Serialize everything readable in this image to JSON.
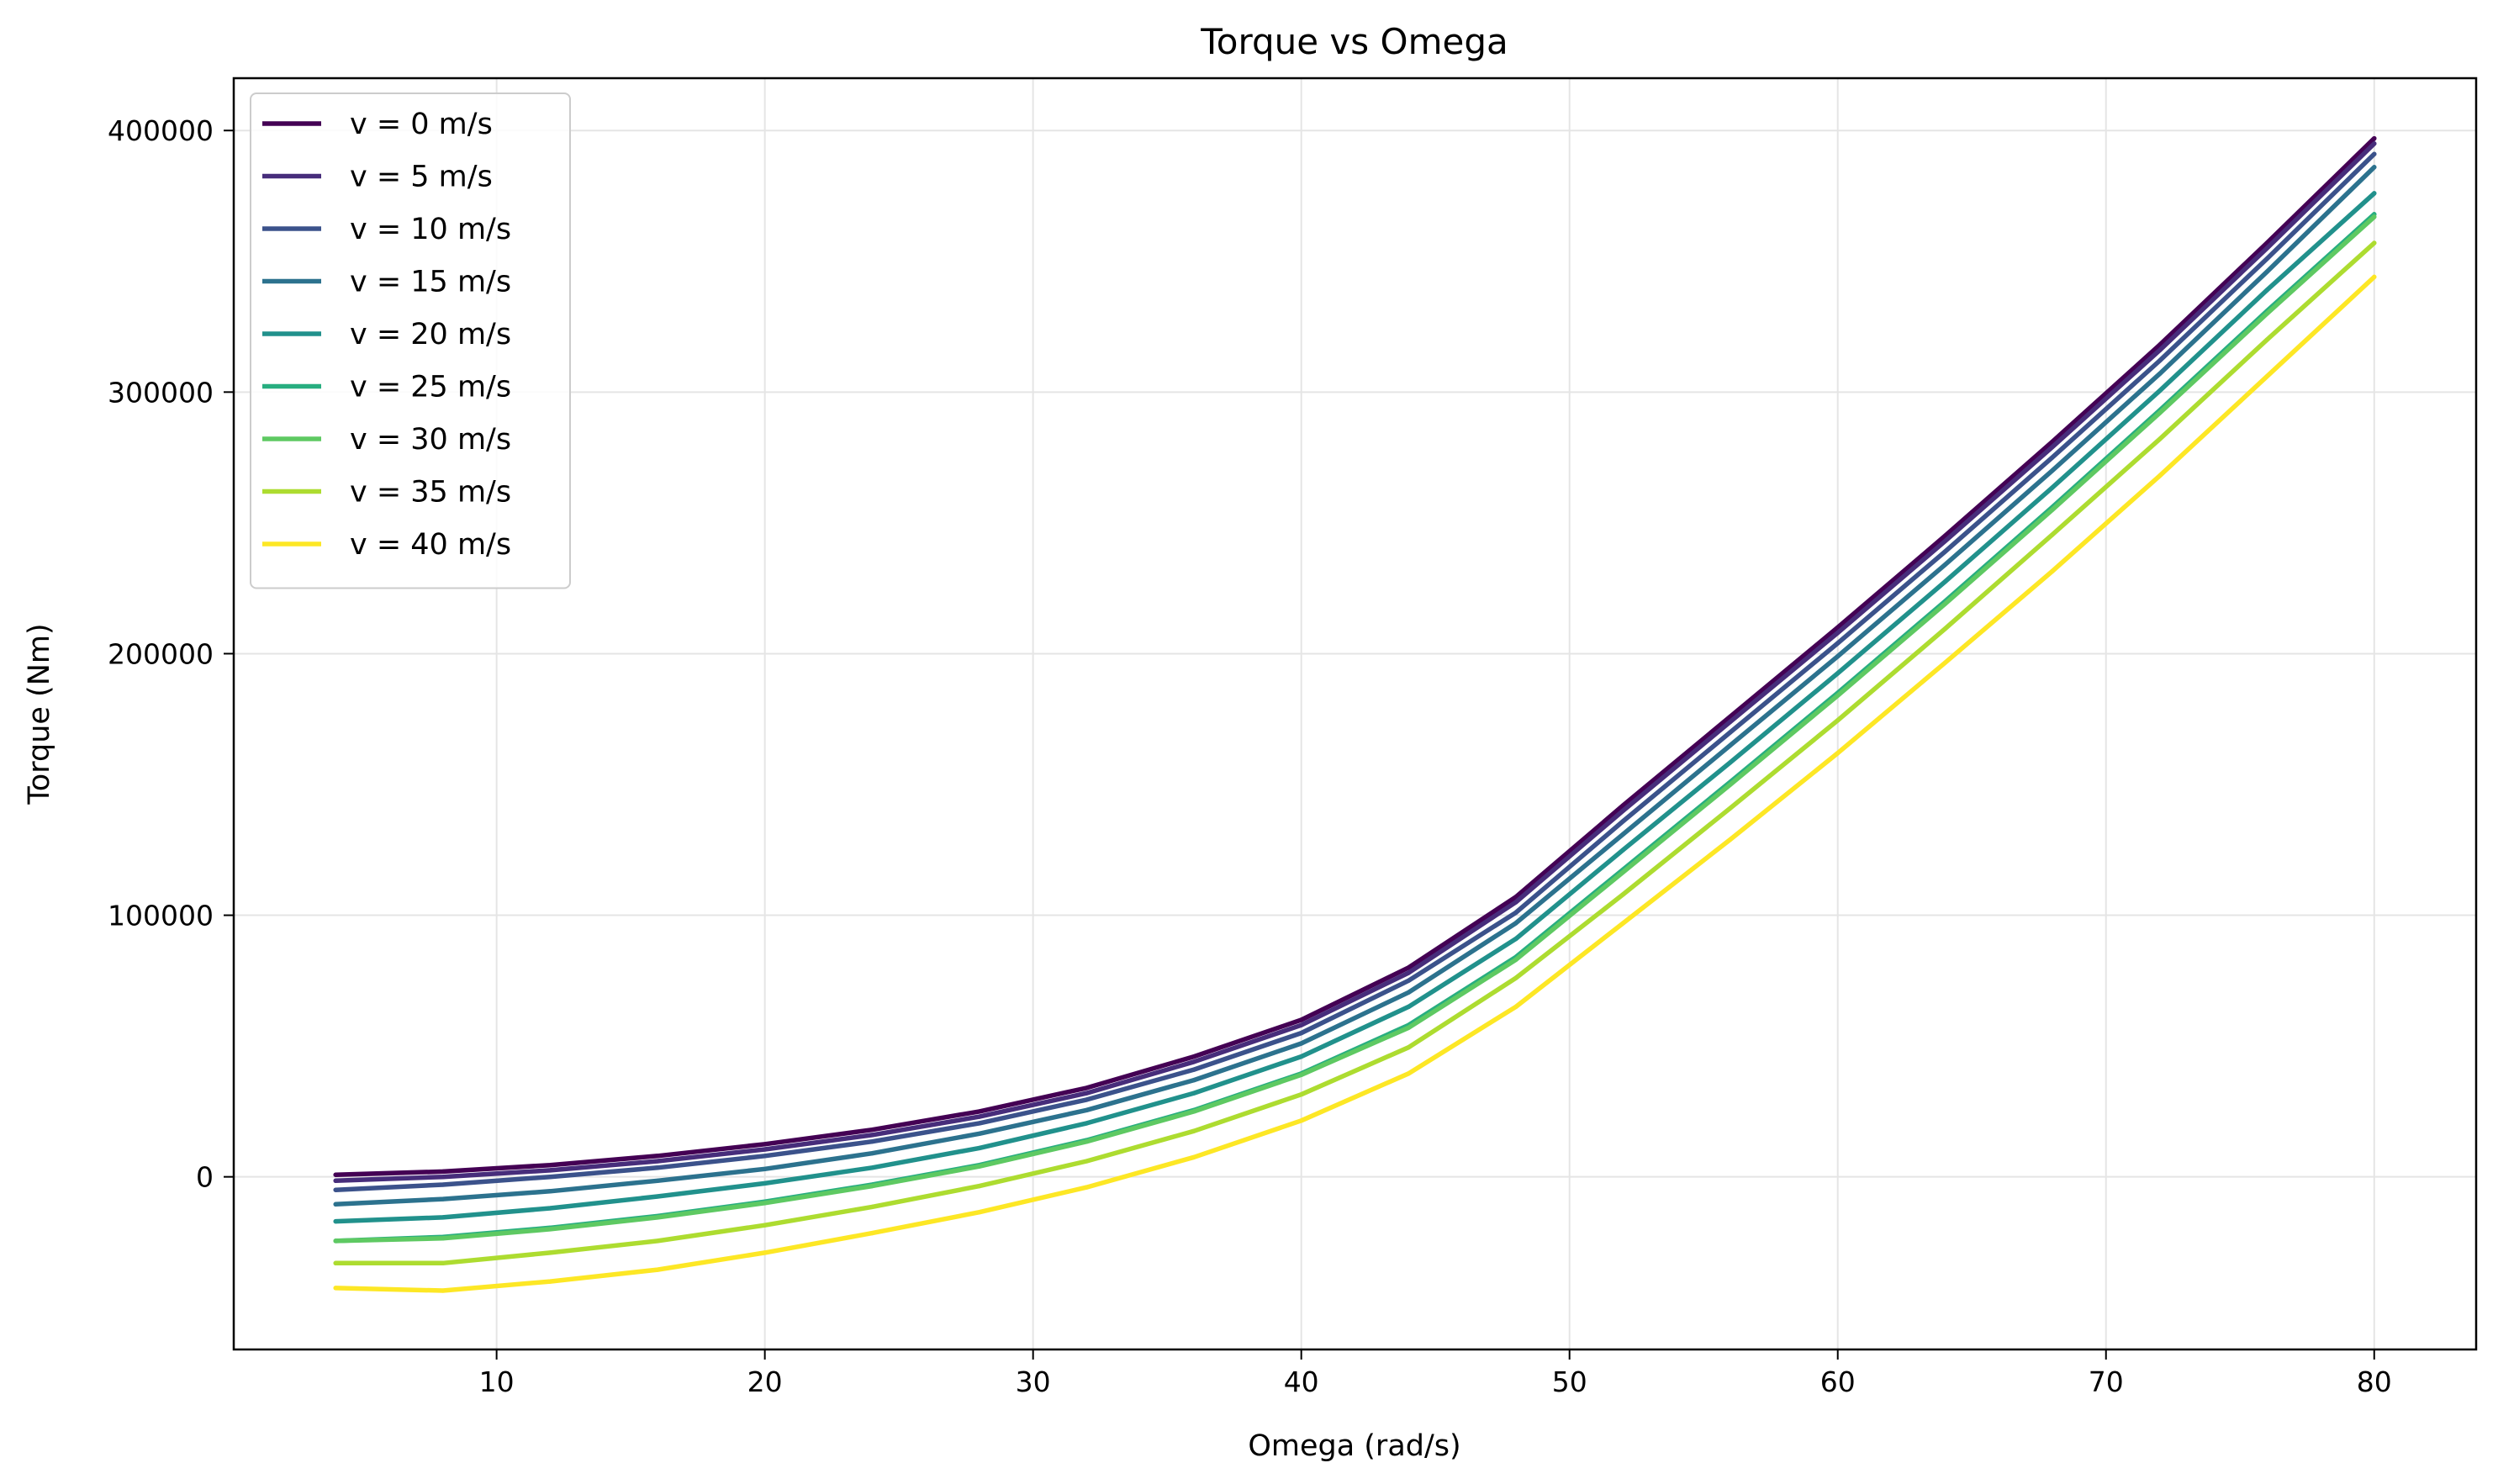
{
  "chart_data": {
    "type": "line",
    "title": "Torque vs Omega",
    "xlabel": "Omega (rad/s)",
    "ylabel": "Torque (Nm)",
    "xlim": [
      0.2,
      83.8
    ],
    "ylim": [
      -66000,
      420000
    ],
    "xticks": [
      10,
      20,
      30,
      40,
      50,
      60,
      70,
      80
    ],
    "yticks": [
      0,
      100000,
      200000,
      300000,
      400000
    ],
    "grid": true,
    "legend_position": "upper left",
    "x": [
      4,
      8,
      12,
      16,
      20,
      24,
      28,
      32,
      36,
      40,
      44,
      48,
      52,
      56,
      60,
      64,
      68,
      72,
      76,
      80
    ],
    "series": [
      {
        "name": "v = 0 m/s",
        "color": "#440154",
        "values": [
          800,
          2000,
          4500,
          8000,
          12500,
          18000,
          25000,
          34000,
          46000,
          60000,
          80000,
          107000,
          142000,
          176000,
          210000,
          245000,
          281000,
          318000,
          357000,
          397000
        ]
      },
      {
        "name": "v = 5 m/s",
        "color": "#472d7b",
        "values": [
          -1500,
          0,
          2500,
          6000,
          10500,
          16000,
          23000,
          32000,
          44000,
          58000,
          78000,
          105000,
          140000,
          174000,
          208000,
          243000,
          279000,
          316000,
          355000,
          395000
        ]
      },
      {
        "name": "v = 10 m/s",
        "color": "#3b528b",
        "values": [
          -5000,
          -3000,
          0,
          3500,
          8000,
          13500,
          20500,
          29500,
          41000,
          55000,
          75000,
          101000,
          136000,
          170000,
          204000,
          239000,
          275000,
          312000,
          351000,
          391000
        ]
      },
      {
        "name": "v = 15 m/s",
        "color": "#2c728e",
        "values": [
          -10500,
          -8500,
          -5500,
          -1500,
          3000,
          9000,
          16500,
          25500,
          37000,
          51000,
          70500,
          97000,
          131000,
          165000,
          199000,
          234000,
          270000,
          307000,
          346000,
          386000
        ]
      },
      {
        "name": "v = 20 m/s",
        "color": "#21918c",
        "values": [
          -17000,
          -15500,
          -12000,
          -7500,
          -2500,
          3500,
          11000,
          20500,
          32000,
          46000,
          65000,
          91000,
          125000,
          158500,
          192500,
          227500,
          263500,
          300500,
          339000,
          376000
        ]
      },
      {
        "name": "v = 25 m/s",
        "color": "#28ae80",
        "values": [
          -24500,
          -23000,
          -19500,
          -15000,
          -9500,
          -3000,
          4500,
          14000,
          25500,
          39500,
          58000,
          84000,
          117500,
          151000,
          185000,
          220000,
          256000,
          293000,
          331000,
          368000
        ]
      },
      {
        "name": "v = 30 m/s",
        "color": "#5ec962",
        "values": [
          -24500,
          -23500,
          -20000,
          -15500,
          -10000,
          -3500,
          4000,
          13500,
          25000,
          39000,
          57000,
          83000,
          116500,
          150000,
          184000,
          219000,
          255000,
          292000,
          330000,
          367000
        ]
      },
      {
        "name": "v = 35 m/s",
        "color": "#addc30",
        "values": [
          -33000,
          -33000,
          -29000,
          -24500,
          -18500,
          -11500,
          -3500,
          6000,
          17500,
          31500,
          49500,
          76000,
          108000,
          141000,
          174500,
          209500,
          245500,
          282000,
          320000,
          357000
        ]
      },
      {
        "name": "v = 40 m/s",
        "color": "#fde725",
        "values": [
          -42500,
          -43500,
          -40000,
          -35500,
          -29000,
          -21500,
          -13500,
          -4000,
          7500,
          21500,
          39500,
          65000,
          97000,
          129000,
          162000,
          196500,
          231500,
          268000,
          306000,
          344000
        ]
      }
    ]
  }
}
